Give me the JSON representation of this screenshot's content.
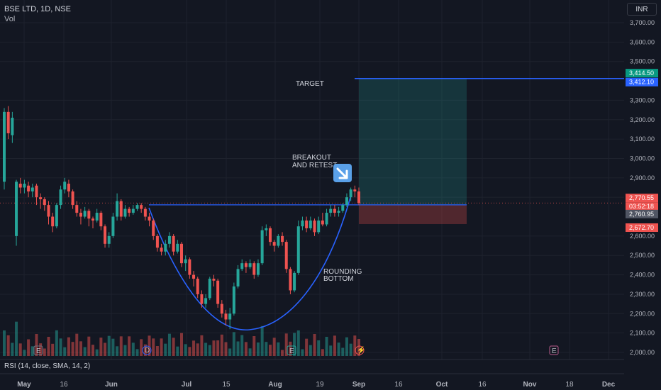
{
  "header": {
    "symbol_line": "BSE LTD, 1D, NSE",
    "volume_label": "Vol",
    "currency": "INR"
  },
  "indicator": {
    "rsi_label": "RSI (14, close, SMA, 14, 2)"
  },
  "axis": {
    "y_ticks": [
      "3,700.00",
      "3,600.00",
      "3,500.00",
      "3,300.00",
      "3,200.00",
      "3,100.00",
      "3,000.00",
      "2,900.00",
      "2,800.00",
      "2,600.00",
      "2,500.00",
      "2,400.00",
      "2,300.00",
      "2,200.00",
      "2,100.00",
      "2,000.00"
    ],
    "x_ticks": [
      "May",
      "16",
      "Jun",
      "Jul",
      "15",
      "Aug",
      "19",
      "Sep",
      "16",
      "Oct",
      "16",
      "Nov",
      "18",
      "Dec"
    ]
  },
  "price_tags": {
    "target_high": "3,414.50",
    "target_line": "3,412.10",
    "last_price": "2,770.55",
    "countdown": "03:52:18",
    "entry": "2,760.95",
    "stop": "2,672.70"
  },
  "annotations": {
    "target": "TARGET",
    "breakout": "BREAKOUT\nAND RETEST",
    "breakout_line1": "BREAKOUT",
    "breakout_line2": "AND RETEST",
    "rounding_line1": "ROUNDING",
    "rounding_line2": "BOTTOM"
  },
  "event_markers": {
    "earnings": "E",
    "dividend": "D",
    "split": "⚡"
  },
  "colors": {
    "background": "#131722",
    "up": "#26a69a",
    "down": "#ef5350",
    "blue": "#2962ff",
    "grid": "#1e222d",
    "target_zone": "rgba(38,166,154,0.22)",
    "stop_zone": "rgba(239,83,80,0.28)"
  },
  "chart_data": {
    "type": "candlestick",
    "title": "BSE LTD, 1D, NSE",
    "ylim": [
      1990,
      3740
    ],
    "levels": {
      "target": 3412.1,
      "target_high": 3414.5,
      "neckline": 2760.95,
      "last": 2770.55,
      "stop": 2672.7
    },
    "candles": [
      [
        2880,
        3240,
        2840,
        3260
      ],
      [
        3240,
        3130,
        3100,
        3270
      ],
      [
        3120,
        3210,
        3080,
        3240
      ],
      [
        2600,
        2880,
        2550,
        2890
      ],
      [
        2870,
        2850,
        2820,
        2900
      ],
      [
        2850,
        2870,
        2820,
        2890
      ],
      [
        2860,
        2830,
        2800,
        2880
      ],
      [
        2830,
        2850,
        2800,
        2870
      ],
      [
        2860,
        2800,
        2760,
        2870
      ],
      [
        2800,
        2790,
        2740,
        2820
      ],
      [
        2790,
        2760,
        2730,
        2800
      ],
      [
        2760,
        2700,
        2660,
        2780
      ],
      [
        2700,
        2650,
        2620,
        2720
      ],
      [
        2650,
        2760,
        2640,
        2770
      ],
      [
        2760,
        2840,
        2740,
        2860
      ],
      [
        2840,
        2880,
        2820,
        2900
      ],
      [
        2870,
        2830,
        2800,
        2890
      ],
      [
        2830,
        2760,
        2740,
        2840
      ],
      [
        2760,
        2720,
        2700,
        2780
      ],
      [
        2720,
        2700,
        2660,
        2740
      ],
      [
        2700,
        2730,
        2690,
        2750
      ],
      [
        2730,
        2690,
        2650,
        2740
      ],
      [
        2690,
        2680,
        2640,
        2700
      ],
      [
        2680,
        2720,
        2670,
        2740
      ],
      [
        2720,
        2650,
        2630,
        2730
      ],
      [
        2650,
        2560,
        2540,
        2660
      ],
      [
        2560,
        2600,
        2540,
        2620
      ],
      [
        2600,
        2700,
        2590,
        2720
      ],
      [
        2700,
        2780,
        2680,
        2820
      ],
      [
        2780,
        2700,
        2680,
        2790
      ],
      [
        2700,
        2740,
        2690,
        2760
      ],
      [
        2740,
        2720,
        2700,
        2750
      ],
      [
        2720,
        2740,
        2710,
        2760
      ],
      [
        2740,
        2760,
        2730,
        2770
      ],
      [
        2760,
        2740,
        2720,
        2770
      ],
      [
        2740,
        2700,
        2680,
        2750
      ],
      [
        2700,
        2680,
        2650,
        2720
      ],
      [
        2680,
        2600,
        2580,
        2690
      ],
      [
        2600,
        2540,
        2520,
        2610
      ],
      [
        2540,
        2520,
        2500,
        2560
      ],
      [
        2520,
        2560,
        2500,
        2580
      ],
      [
        2560,
        2600,
        2540,
        2620
      ],
      [
        2600,
        2520,
        2500,
        2610
      ],
      [
        2520,
        2560,
        2510,
        2580
      ],
      [
        2560,
        2460,
        2440,
        2570
      ],
      [
        2460,
        2480,
        2420,
        2500
      ],
      [
        2480,
        2400,
        2380,
        2490
      ],
      [
        2400,
        2380,
        2340,
        2420
      ],
      [
        2380,
        2300,
        2280,
        2390
      ],
      [
        2300,
        2250,
        2230,
        2320
      ],
      [
        2250,
        2280,
        2230,
        2300
      ],
      [
        2280,
        2380,
        2270,
        2390
      ],
      [
        2380,
        2370,
        2340,
        2400
      ],
      [
        2370,
        2250,
        2230,
        2380
      ],
      [
        2250,
        2200,
        2180,
        2270
      ],
      [
        2200,
        2170,
        2140,
        2220
      ],
      [
        2170,
        2200,
        2120,
        2230
      ],
      [
        2200,
        2340,
        2190,
        2360
      ],
      [
        2340,
        2430,
        2330,
        2450
      ],
      [
        2430,
        2460,
        2420,
        2480
      ],
      [
        2460,
        2440,
        2410,
        2470
      ],
      [
        2440,
        2460,
        2430,
        2480
      ],
      [
        2460,
        2400,
        2380,
        2470
      ],
      [
        2400,
        2460,
        2390,
        2480
      ],
      [
        2460,
        2630,
        2450,
        2650
      ],
      [
        2630,
        2640,
        2600,
        2660
      ],
      [
        2640,
        2570,
        2550,
        2650
      ],
      [
        2570,
        2550,
        2520,
        2580
      ],
      [
        2550,
        2600,
        2540,
        2610
      ],
      [
        2600,
        2570,
        2550,
        2620
      ],
      [
        2570,
        2430,
        2410,
        2580
      ],
      [
        2430,
        2320,
        2300,
        2440
      ],
      [
        2320,
        2410,
        2310,
        2420
      ],
      [
        2410,
        2650,
        2400,
        2680
      ],
      [
        2650,
        2680,
        2630,
        2700
      ],
      [
        2680,
        2640,
        2620,
        2700
      ],
      [
        2640,
        2680,
        2630,
        2700
      ],
      [
        2680,
        2620,
        2600,
        2690
      ],
      [
        2620,
        2680,
        2610,
        2700
      ],
      [
        2680,
        2660,
        2650,
        2720
      ],
      [
        2660,
        2720,
        2650,
        2740
      ],
      [
        2720,
        2740,
        2700,
        2760
      ],
      [
        2740,
        2720,
        2700,
        2760
      ],
      [
        2720,
        2730,
        2700,
        2750
      ],
      [
        2730,
        2760,
        2720,
        2770
      ],
      [
        2760,
        2800,
        2750,
        2820
      ],
      [
        2800,
        2840,
        2780,
        2850
      ],
      [
        2840,
        2830,
        2800,
        2860
      ],
      [
        2830,
        2770,
        2760,
        2850
      ]
    ]
  }
}
